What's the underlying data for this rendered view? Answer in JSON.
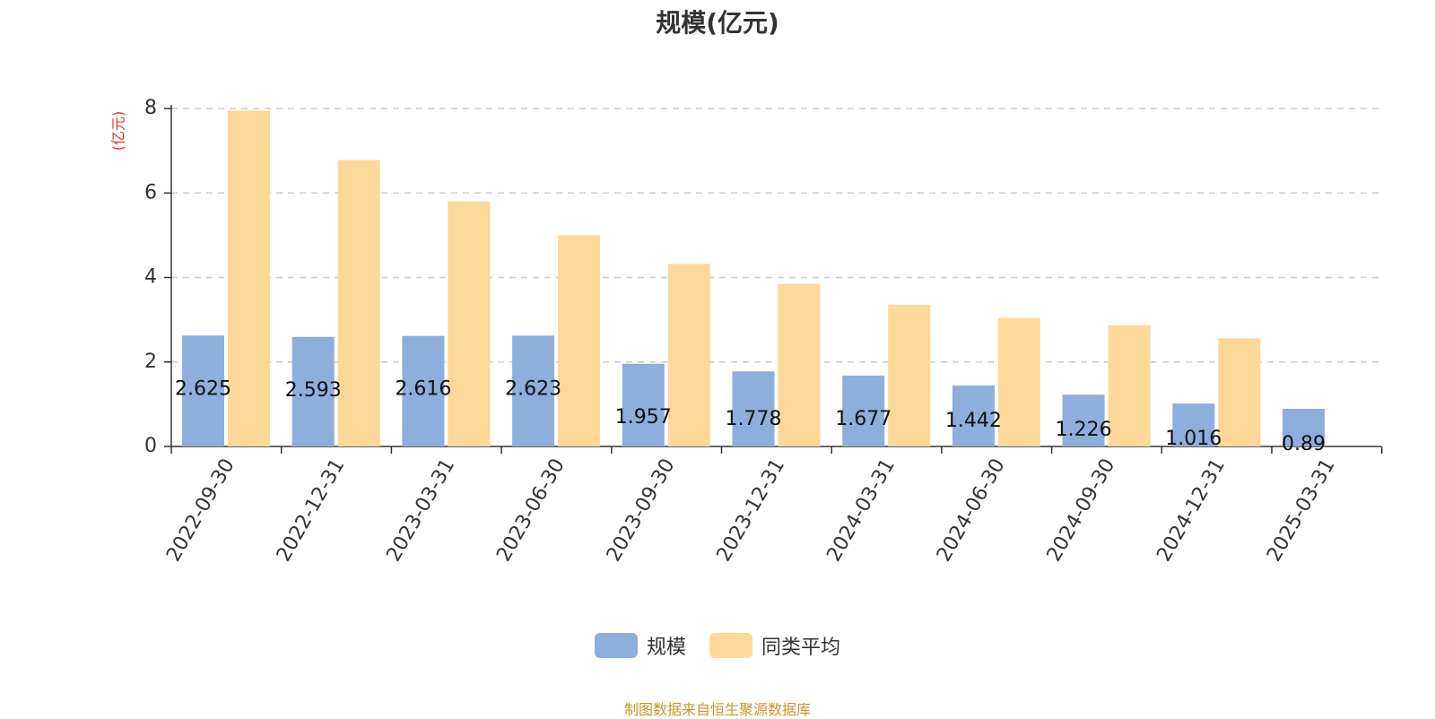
{
  "chart_data": {
    "type": "bar",
    "title": "规模(亿元)",
    "ylabel": "(亿元)",
    "xlabel": "",
    "ylim": [
      0,
      8
    ],
    "yticks": [
      0,
      2,
      4,
      6,
      8
    ],
    "grid": true,
    "legend_position": "bottom-center",
    "categories": [
      "2022-09-30",
      "2022-12-31",
      "2023-03-31",
      "2023-06-30",
      "2023-09-30",
      "2023-12-31",
      "2024-03-31",
      "2024-06-30",
      "2024-09-30",
      "2024-12-31",
      "2025-03-31"
    ],
    "series": [
      {
        "name": "规模",
        "color": "#8eaedc",
        "values": [
          2.625,
          2.593,
          2.616,
          2.623,
          1.957,
          1.778,
          1.677,
          1.442,
          1.226,
          1.016,
          0.89
        ],
        "labels": [
          "2.625",
          "2.593",
          "2.616",
          "2.623",
          "1.957",
          "1.778",
          "1.677",
          "1.442",
          "1.226",
          "1.016",
          "0.89"
        ]
      },
      {
        "name": "同类平均",
        "color": "#fdd899",
        "values": [
          7.95,
          6.78,
          5.8,
          5.0,
          4.32,
          3.85,
          3.35,
          3.04,
          2.87,
          2.56,
          null
        ]
      }
    ],
    "source_note": "制图数据来自恒生聚源数据库"
  },
  "colors": {
    "axis": "#333333",
    "grid": "#cccccc",
    "ylabel": "#e8312a",
    "source": "#c8962a"
  }
}
